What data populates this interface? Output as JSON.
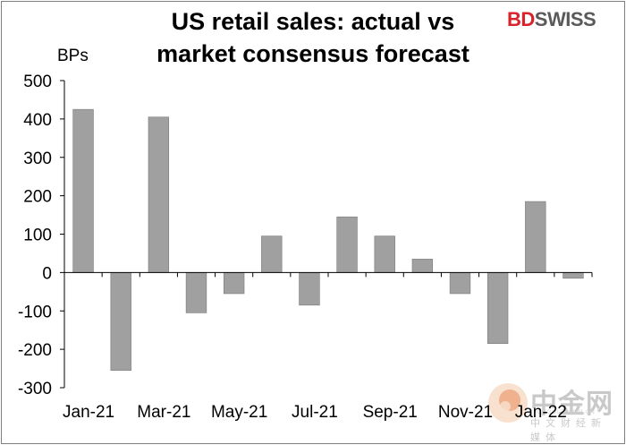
{
  "brand": {
    "prefix": "BD",
    "suffix": "SWISS"
  },
  "watermark": {
    "chinese": "中金网",
    "sub": "中文财经新媒体",
    "url": "CNGOLD.COM.CN"
  },
  "chart_data": {
    "type": "bar",
    "title_lines": [
      "US retail sales: actual vs",
      "market consensus forecast"
    ],
    "ylabel": "BPs",
    "ylim": [
      -300,
      500
    ],
    "yticks": [
      500,
      400,
      300,
      200,
      100,
      0,
      -100,
      -200,
      -300
    ],
    "categories": [
      "Jan-21",
      "Feb-21",
      "Mar-21",
      "Apr-21",
      "May-21",
      "Jun-21",
      "Jul-21",
      "Aug-21",
      "Sep-21",
      "Oct-21",
      "Nov-21",
      "Dec-21",
      "Jan-22",
      "Feb-22"
    ],
    "xtick_labels": [
      "Jan-21",
      "Mar-21",
      "May-21",
      "Jul-21",
      "Sep-21",
      "Nov-21",
      "Jan-22"
    ],
    "values": [
      425,
      -255,
      405,
      -105,
      -55,
      95,
      -85,
      145,
      95,
      35,
      -55,
      -185,
      185,
      -15
    ],
    "bar_color": "#a0a0a0",
    "grid": false,
    "legend": "none"
  }
}
